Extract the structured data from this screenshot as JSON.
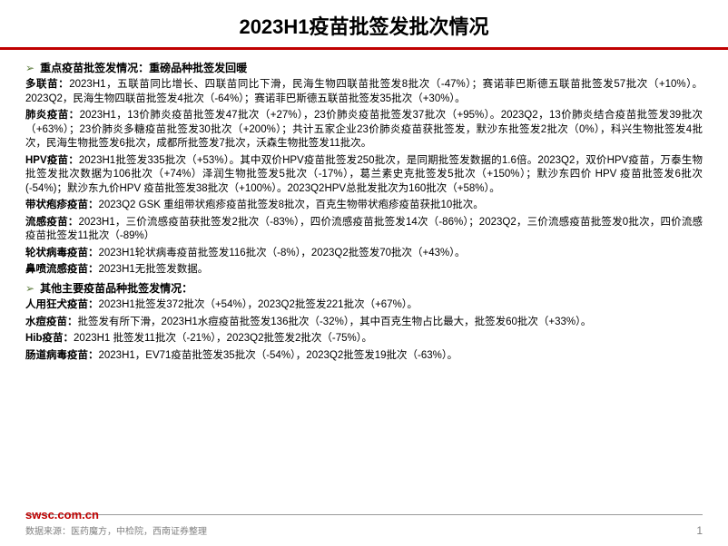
{
  "title": "2023H1疫苗批签发批次情况",
  "section1": {
    "header": "重点疫苗批签发情况：重磅品种批签发回暖",
    "items": [
      {
        "label": "多联苗：",
        "text": "2023H1，五联苗同比增长、四联苗同比下滑，民海生物四联苗批签发8批次（-47%）；赛诺菲巴斯德五联苗批签发57批次（+10%）。2023Q2，民海生物四联苗批签发4批次（-64%）；赛诺菲巴斯德五联苗批签发35批次（+30%）。"
      },
      {
        "label": "肺炎疫苗：",
        "text": "2023H1，13价肺炎疫苗批签发47批次（+27%），23价肺炎疫苗批签发37批次（+95%）。2023Q2，13价肺炎结合疫苗批签发39批次（+63%）；23价肺炎多糖疫苗批签发30批次（+200%）；共计五家企业23价肺炎疫苗获批签发，默沙东批签发2批次（0%），科兴生物批签发4批次，民海生物批签发6批次，成都所批签发7批次，沃森生物批签发11批次。"
      },
      {
        "label": "HPV疫苗：",
        "text": "2023H1批签发335批次（+53%）。其中双价HPV疫苗批签发250批次，是同期批签发数据的1.6倍。2023Q2，双价HPV疫苗，万泰生物批签发批次数据为106批次（+74%）泽润生物批签发5批次（-17%），葛兰素史克批签发5批次（+150%）；默沙东四价 HPV 疫苗批签发6批次(-54%)；默沙东九价HPV 疫苗批签发38批次（+100%）。2023Q2HPV总批发批次为160批次（+58%）。"
      },
      {
        "label": "带状疱疹疫苗：",
        "text": "2023Q2 GSK 重组带状疱疹疫苗批签发8批次，百克生物带状疱疹疫苗获批10批次。"
      },
      {
        "label": "流感疫苗：",
        "text": "2023H1，三价流感疫苗获批签发2批次（-83%），四价流感疫苗批签发14次（-86%）；2023Q2，三价流感疫苗批签发0批次，四价流感疫苗批签发11批次（-89%）"
      },
      {
        "label": "轮状病毒疫苗：",
        "text": "2023H1轮状病毒疫苗批签发116批次（-8%），2023Q2批签发70批次（+43%）。"
      },
      {
        "label": "鼻喷流感疫苗：",
        "text": "2023H1无批签发数据。"
      }
    ]
  },
  "section2": {
    "header": "其他主要疫苗品种批签发情况：",
    "items": [
      {
        "label": "人用狂犬疫苗：",
        "text": "2023H1批签发372批次（+54%），2023Q2批签发221批次（+67%）。"
      },
      {
        "label": "水痘疫苗：",
        "text": "批签发有所下滑，2023H1水痘疫苗批签发136批次（-32%），其中百克生物占比最大，批签发60批次（+33%）。"
      },
      {
        "label": "Hib疫苗：",
        "text": "2023H1 批签发11批次（-21%），2023Q2批签发2批次（-75%）。"
      },
      {
        "label": "肠道病毒疫苗：",
        "text": "2023H1，EV71疫苗批签发35批次（-54%），2023Q2批签发19批次（-63%）。"
      }
    ]
  },
  "footer": {
    "url": "swsc.com.cn",
    "source": "数据来源：医药魔方，中检院，西南证券整理",
    "page": "1"
  },
  "colors": {
    "red": "#c00000",
    "green_arrow": "#5b7a3a",
    "gray": "#808080"
  }
}
